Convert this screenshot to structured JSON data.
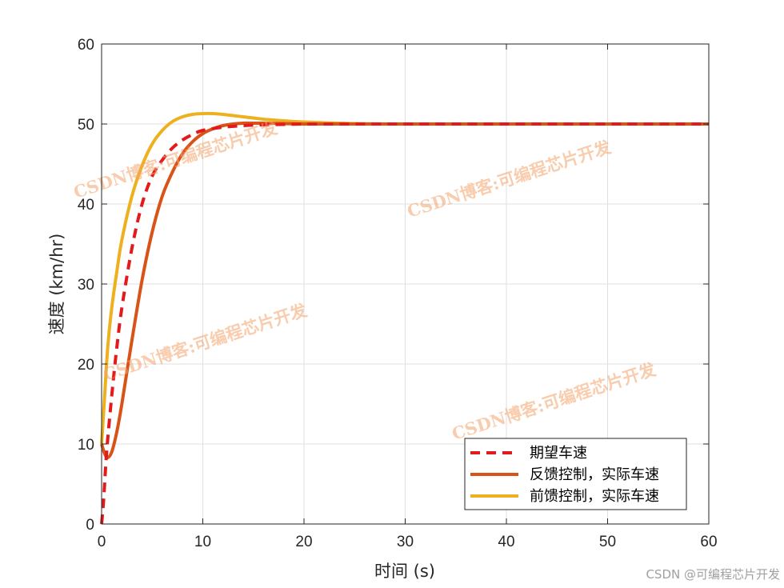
{
  "chart_data": {
    "type": "line",
    "xlabel": "时间 (s)",
    "ylabel": "速度 (km/hr)",
    "xlim": [
      0,
      60
    ],
    "ylim": [
      0,
      60
    ],
    "xticks": [
      0,
      10,
      20,
      30,
      40,
      50,
      60
    ],
    "yticks": [
      0,
      10,
      20,
      30,
      40,
      50,
      60
    ],
    "grid": true,
    "legend_position": "bottom-right",
    "series": [
      {
        "name": "期望车速",
        "color": "#e31a1c",
        "style": "dashed",
        "x": [
          0,
          0.2,
          0.5,
          1,
          1.5,
          2,
          3,
          4,
          5,
          6,
          7,
          8,
          9,
          10,
          12,
          14,
          16,
          18,
          20,
          25,
          30,
          40,
          50,
          60
        ],
        "y": [
          0,
          3,
          9,
          16,
          22,
          27,
          34.5,
          40,
          43.5,
          45.5,
          47,
          48,
          48.7,
          49.2,
          49.6,
          49.8,
          49.9,
          49.95,
          50,
          50,
          50,
          50,
          50,
          50
        ]
      },
      {
        "name": "反馈控制，实际车速",
        "color": "#d95319",
        "style": "solid",
        "x": [
          0,
          0.3,
          0.6,
          1,
          1.5,
          2,
          3,
          4,
          5,
          6,
          7,
          8,
          9,
          10,
          11,
          12,
          13,
          14,
          15,
          16,
          18,
          20,
          25,
          30,
          40,
          50,
          60
        ],
        "y": [
          10,
          8.8,
          8.3,
          9,
          11.5,
          15,
          23,
          30.5,
          36.5,
          41,
          44,
          46.3,
          47.8,
          48.8,
          49.4,
          49.8,
          50,
          50.1,
          50.1,
          50.1,
          50.05,
          50,
          50,
          50,
          50,
          50,
          50
        ]
      },
      {
        "name": "前馈控制，实际车速",
        "color": "#edb120",
        "style": "solid",
        "x": [
          0,
          0.3,
          0.6,
          1,
          1.5,
          2,
          3,
          4,
          5,
          6,
          7,
          8,
          9,
          10,
          11,
          12,
          14,
          16,
          18,
          20,
          25,
          30,
          40,
          50,
          60
        ],
        "y": [
          10,
          16,
          22,
          27,
          31.5,
          35.5,
          41,
          44.8,
          47.5,
          49.2,
          50.3,
          50.9,
          51.2,
          51.3,
          51.3,
          51.2,
          50.9,
          50.6,
          50.4,
          50.25,
          50.05,
          50,
          50,
          50,
          50
        ]
      }
    ]
  },
  "watermarks": [
    "CSDN博客:可编程芯片开发",
    "CSDN博客:可编程芯片开发",
    "CSDN博客:可编程芯片开发",
    "CSDN博客:可编程芯片开发"
  ],
  "corner_watermark": "CSDN @可编程芯片开发"
}
